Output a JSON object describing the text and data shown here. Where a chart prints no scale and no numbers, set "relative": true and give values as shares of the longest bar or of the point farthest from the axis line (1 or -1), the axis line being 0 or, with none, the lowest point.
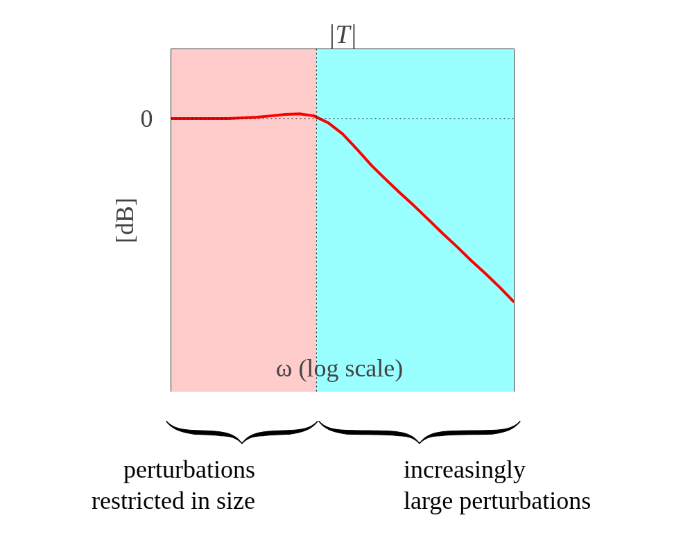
{
  "chart_data": {
    "type": "line",
    "title": "|T|",
    "xlabel": "ω  (log scale)",
    "ylabel": "[dB]",
    "relative": true,
    "categories": [
      null,
      null,
      null,
      null,
      null,
      null,
      null,
      null,
      null,
      null,
      null,
      null,
      null,
      null,
      null,
      null,
      null,
      null,
      null,
      null,
      null,
      null,
      null,
      null,
      null
    ],
    "series": [
      {
        "color": "#ff0000",
        "values": [
          0,
          0,
          0,
          0,
          0,
          0.004,
          0.008,
          0.015,
          0.023,
          0.026,
          0.015,
          -0.023,
          -0.083,
          -0.166,
          -0.253,
          -0.33,
          -0.404,
          -0.475,
          -0.55,
          -0.626,
          -0.698,
          -0.774,
          -0.845,
          -0.92,
          -1
        ]
      }
    ],
    "tick_labels": false,
    "grid": false,
    "line_style": "solid",
    "ref_lines": [
      {
        "axis": "y",
        "value": 0,
        "label": "0",
        "line_style": "dotted",
        "color": "#000000"
      }
    ],
    "annotations": [
      "perturbations\nrestricted in size",
      "increasingly\nlarge perturbations"
    ]
  }
}
